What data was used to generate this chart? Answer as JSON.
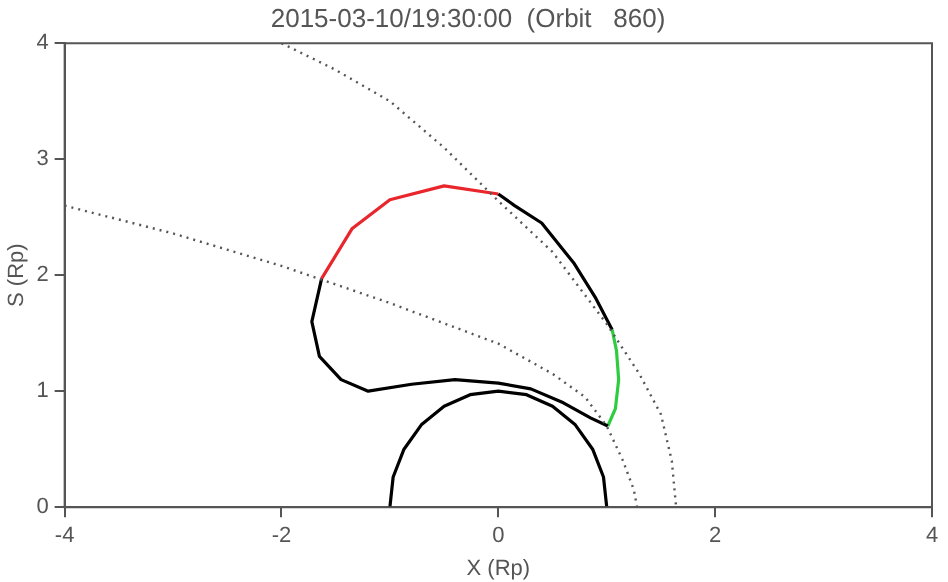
{
  "chart_data": {
    "type": "line",
    "title": "2015-03-10/19:30:00  (Orbit   860)",
    "xlabel": "X (Rp)",
    "ylabel": "S (Rp)",
    "xlim": [
      -4,
      4
    ],
    "ylim": [
      0,
      4
    ],
    "xticks": [
      -4,
      -2,
      0,
      2,
      4
    ],
    "yticks": [
      0,
      1,
      2,
      3,
      4
    ],
    "grid": false,
    "legend": false,
    "marker": "none",
    "series": [
      {
        "color": "#555555",
        "line_style": "dotted",
        "x": [
          -2,
          -1.5,
          -1,
          -0.5,
          0,
          0.5,
          1,
          1.3,
          1.5,
          1.6,
          1.64
        ],
        "values": [
          4.0,
          3.77,
          3.5,
          3.1,
          2.64,
          2.2,
          1.58,
          1.15,
          0.8,
          0.4,
          0
        ]
      },
      {
        "color": "#555555",
        "line_style": "dotted",
        "x": [
          -4,
          -3,
          -2,
          -1,
          0,
          0.5,
          0.8,
          1.0,
          1.15,
          1.25,
          1.28
        ],
        "values": [
          2.6,
          2.36,
          2.08,
          1.76,
          1.41,
          1.15,
          0.95,
          0.7,
          0.4,
          0.15,
          0
        ]
      },
      {
        "color": "#000000",
        "line_style": "solid",
        "x": [
          -1,
          -0.97,
          -0.87,
          -0.71,
          -0.5,
          -0.26,
          0,
          0.26,
          0.5,
          0.71,
          0.87,
          0.97,
          1
        ],
        "values": [
          0,
          0.26,
          0.5,
          0.71,
          0.87,
          0.97,
          1,
          0.97,
          0.87,
          0.71,
          0.5,
          0.26,
          0
        ]
      },
      {
        "color": "#000000",
        "line_style": "solid",
        "x": [
          1.05,
          0.9,
          0.7,
          0.4,
          0.15,
          0
        ],
        "values": [
          1.53,
          1.8,
          2.1,
          2.45,
          2.6,
          2.7
        ]
      },
      {
        "color": "#e8262b",
        "line_style": "solid",
        "x": [
          0,
          -0.5,
          -1,
          -1.35,
          -1.63
        ],
        "values": [
          2.7,
          2.77,
          2.65,
          2.4,
          1.97
        ]
      },
      {
        "color": "#000000",
        "line_style": "solid",
        "x": [
          -1.63,
          -1.72,
          -1.65,
          -1.45,
          -1.2,
          -0.8,
          -0.4,
          0,
          0.3,
          0.6,
          0.85,
          1.01
        ],
        "values": [
          1.97,
          1.6,
          1.3,
          1.1,
          1.0,
          1.06,
          1.1,
          1.07,
          1.02,
          0.9,
          0.77,
          0.7
        ]
      },
      {
        "color": "#2ecc40",
        "line_style": "solid",
        "x": [
          1.01,
          1.08,
          1.11,
          1.09,
          1.05
        ],
        "values": [
          0.7,
          0.85,
          1.1,
          1.35,
          1.53
        ]
      }
    ]
  }
}
